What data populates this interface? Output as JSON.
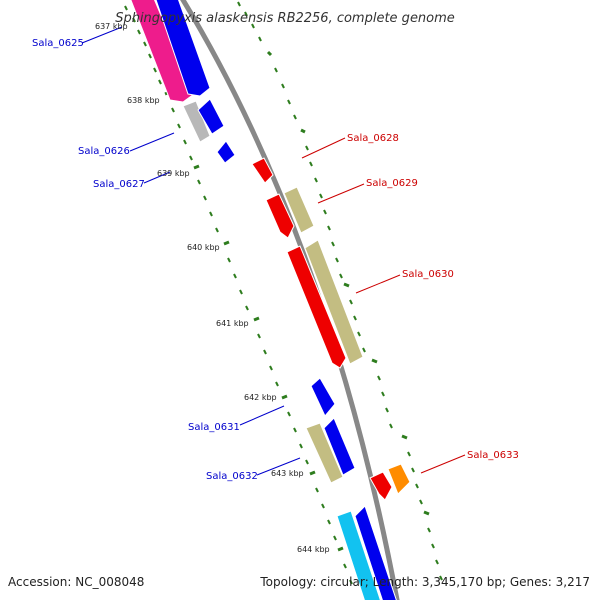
{
  "title": "Sphingopyxis alaskensis RB2256, complete genome",
  "footer": {
    "accession": "Accession: NC_008048",
    "summary": "Topology: circular; Length: 3,345,170 bp; Genes: 3,217"
  },
  "kbp_labels": [
    "637 kbp",
    "638 kbp",
    "639 kbp",
    "640 kbp",
    "641 kbp",
    "642 kbp",
    "643 kbp",
    "644 kbp"
  ],
  "colors": {
    "backbone": "#888888",
    "tick": "#2e7d1e",
    "forward_label": "#cc0000",
    "reverse_label": "#0000cc",
    "blue": "#0000ee",
    "red": "#ee0000",
    "khaki": "#c3bd82",
    "magenta": "#ee1c8c",
    "silver": "#b8b8b8",
    "cyan": "#12c2f0",
    "orange": "#ff8c00"
  },
  "genes": [
    {
      "label": "Sala_0625",
      "strand": "reverse"
    },
    {
      "label": "Sala_0626",
      "strand": "reverse"
    },
    {
      "label": "Sala_0627",
      "strand": "reverse"
    },
    {
      "label": "Sala_0628",
      "strand": "forward"
    },
    {
      "label": "Sala_0629",
      "strand": "forward"
    },
    {
      "label": "Sala_0630",
      "strand": "forward"
    },
    {
      "label": "Sala_0631",
      "strand": "reverse"
    },
    {
      "label": "Sala_0632",
      "strand": "reverse"
    },
    {
      "label": "Sala_0633",
      "strand": "forward"
    }
  ]
}
